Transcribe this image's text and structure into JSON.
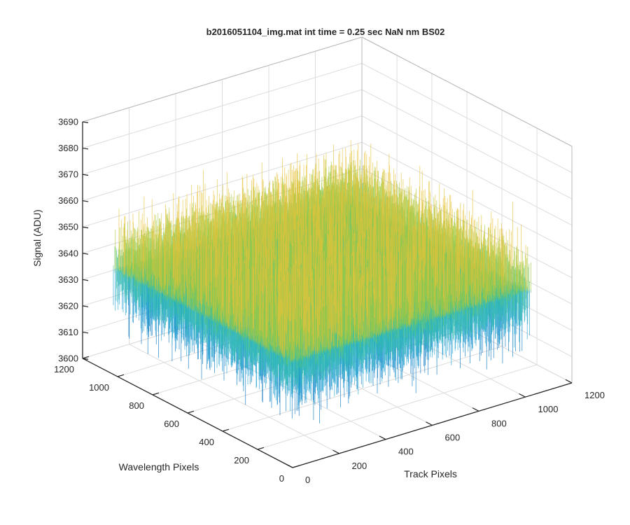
{
  "chart_data": {
    "type": "surface-3d",
    "title": "b2016051104_img.mat int time = 0.25 sec  NaN nm BS02",
    "xlabel": "Track Pixels",
    "ylabel": "Wavelength Pixels",
    "zlabel": "Signal (ADU)",
    "xlim": [
      0,
      1200
    ],
    "ylim": [
      0,
      1200
    ],
    "zlim": [
      3600,
      3690
    ],
    "x_ticks": [
      "0",
      "200",
      "400",
      "600",
      "800",
      "1000",
      "1200"
    ],
    "y_ticks": [
      "0",
      "200",
      "400",
      "600",
      "800",
      "1000",
      "1200"
    ],
    "z_ticks": [
      "3600",
      "3610",
      "3620",
      "3630",
      "3640",
      "3650",
      "3660",
      "3670",
      "3680",
      "3690"
    ],
    "grid": true,
    "data_extent": {
      "x": [
        0,
        1024
      ],
      "y": [
        0,
        1024
      ]
    },
    "signal_typical_range": [
      3618,
      3665
    ],
    "signal_mean": 3640,
    "colormap": [
      "#0072bd",
      "#1a9fd0",
      "#2fb9b0",
      "#5cc67a",
      "#a6c83a",
      "#e6c23a"
    ]
  }
}
